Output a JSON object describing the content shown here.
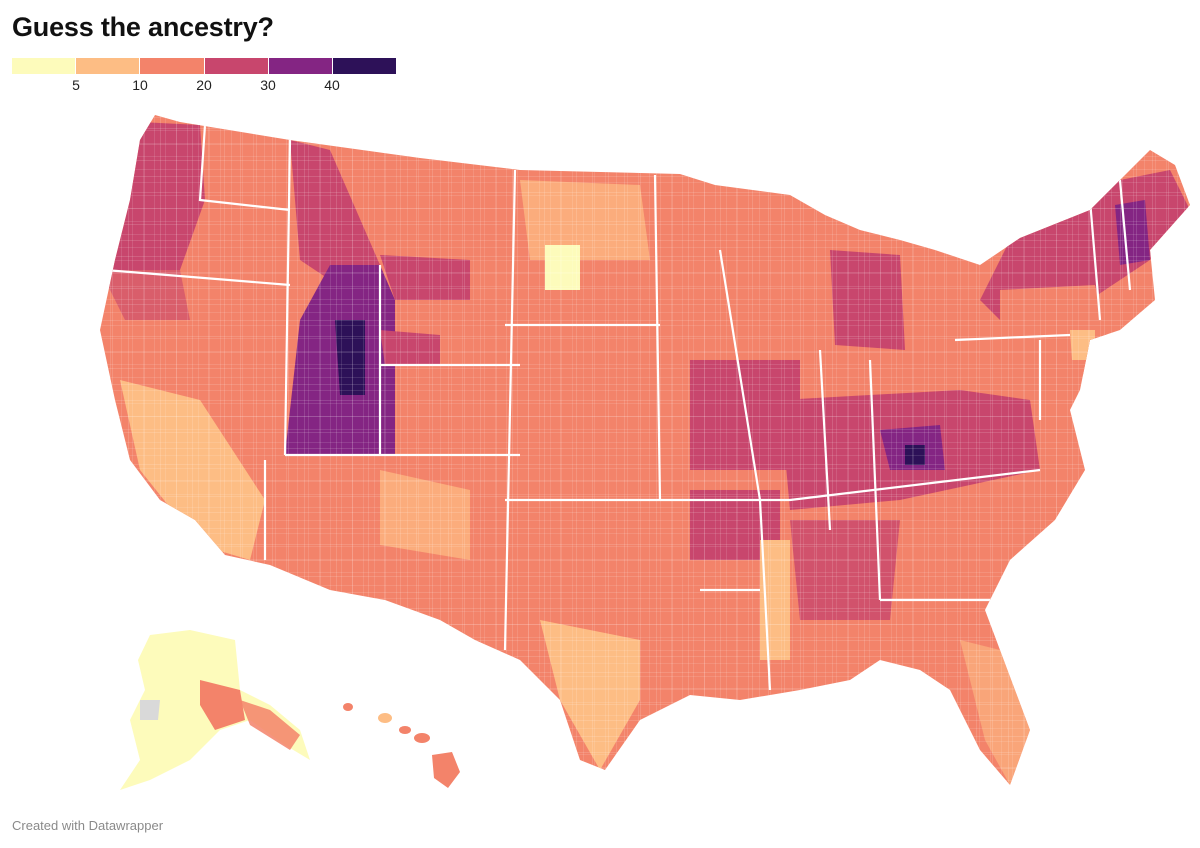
{
  "title": "Guess the ancestry?",
  "footer": "Created with Datawrapper",
  "legend": {
    "colors": [
      "#fdfbbb",
      "#fdbd84",
      "#f3836a",
      "#c8466d",
      "#842583",
      "#2d1158"
    ],
    "ticks": [
      "5",
      "10",
      "20",
      "30",
      "40"
    ],
    "bins": [
      0,
      5,
      10,
      20,
      30,
      40
    ]
  },
  "map": {
    "type": "county choropleth",
    "state_border_color": "#ffffff",
    "missing_color": "#d9d9d9",
    "high_value_regions": [
      "Utah",
      "southern Idaho",
      "western Wyoming",
      "Kentucky",
      "Tennessee",
      "West Virginia",
      "Missouri Ozarks",
      "Arkansas",
      "northern Michigan",
      "Maine",
      "New Hampshire",
      "Vermont",
      "western Oregon"
    ],
    "low_value_regions": [
      "Alaska",
      "southern Texas border",
      "North Dakota",
      "Mississippi Delta",
      "New York City area",
      "southern California"
    ]
  }
}
